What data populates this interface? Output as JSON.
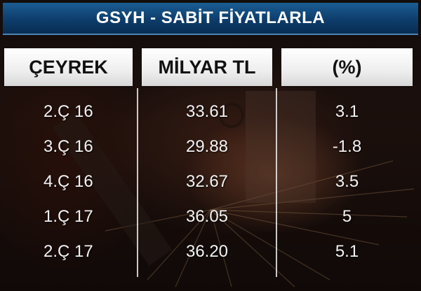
{
  "title": "GSYH - SABİT FİYATLARLA",
  "headers": {
    "quarter": "ÇEYREK",
    "value": "MİLYAR TL",
    "percent": "(%)"
  },
  "rows": [
    {
      "quarter": "2.Ç 16",
      "value": "33.61",
      "percent": "3.1"
    },
    {
      "quarter": "3.Ç 16",
      "value": "29.88",
      "percent": "-1.8"
    },
    {
      "quarter": "4.Ç 16",
      "value": "32.67",
      "percent": "3.5"
    },
    {
      "quarter": "1.Ç 17",
      "value": "36.05",
      "percent": "5"
    },
    {
      "quarter": "2.Ç 17",
      "value": "36.20",
      "percent": "5.1"
    }
  ],
  "colors": {
    "title_bar": "#0d3d6b",
    "header_bg": "#eeeeee",
    "text": "#f2f2f2"
  }
}
